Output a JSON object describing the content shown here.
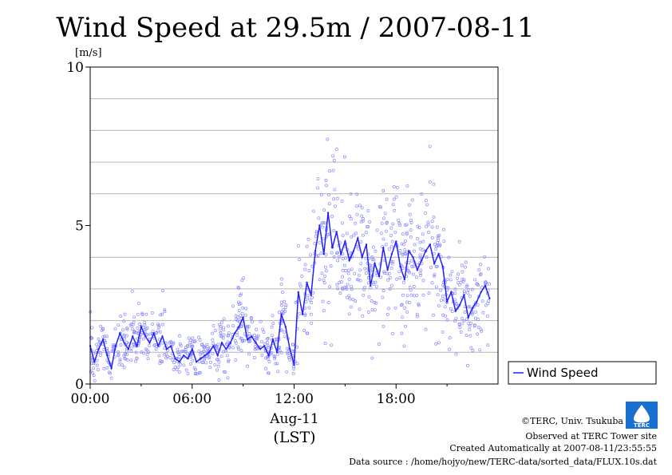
{
  "title": "Wind Speed at 29.5m / 2007-08-11",
  "chart_data": {
    "type": "line",
    "title": "Wind Speed at 29.5m / 2007-08-11",
    "ylabel": "[m/s]",
    "xlabel_date": "Aug-11",
    "xlabel_tz": "(LST)",
    "ylim": [
      0,
      10
    ],
    "xlim_hours": [
      0,
      24
    ],
    "yticks": [
      {
        "v": 0,
        "label": "0"
      },
      {
        "v": 5,
        "label": "5"
      },
      {
        "v": 10,
        "label": "10"
      }
    ],
    "ygrid": [
      1,
      2,
      3,
      4,
      6,
      7,
      8,
      9
    ],
    "xticks": [
      {
        "v": 0,
        "label": "00:00"
      },
      {
        "v": 6,
        "label": "06:00"
      },
      {
        "v": 12,
        "label": "12:00"
      },
      {
        "v": 18,
        "label": "18:00"
      }
    ],
    "grid": true,
    "legend_position": "right",
    "series": [
      {
        "name": "Wind Speed",
        "color": "#2020ff",
        "x_hours": [
          0,
          0.25,
          0.5,
          0.75,
          1,
          1.25,
          1.5,
          1.75,
          2,
          2.25,
          2.5,
          2.75,
          3,
          3.25,
          3.5,
          3.75,
          4,
          4.25,
          4.5,
          4.75,
          5,
          5.25,
          5.5,
          5.75,
          6,
          6.25,
          6.5,
          6.75,
          7,
          7.25,
          7.5,
          7.75,
          8,
          8.25,
          8.5,
          8.75,
          9,
          9.25,
          9.5,
          9.75,
          10,
          10.25,
          10.5,
          10.75,
          11,
          11.25,
          11.5,
          11.75,
          12,
          12.25,
          12.5,
          12.75,
          13,
          13.25,
          13.5,
          13.75,
          14,
          14.25,
          14.5,
          14.75,
          15,
          15.25,
          15.5,
          15.75,
          16,
          16.25,
          16.5,
          16.75,
          17,
          17.25,
          17.5,
          17.75,
          18,
          18.25,
          18.5,
          18.75,
          19,
          19.25,
          19.5,
          19.75,
          20,
          20.25,
          20.5,
          20.75,
          21,
          21.25,
          21.5,
          21.75,
          22,
          22.25,
          22.5,
          22.75,
          23,
          23.25,
          23.5
        ],
        "values": [
          1.2,
          0.7,
          1.1,
          1.4,
          0.9,
          0.5,
          1.2,
          1.6,
          1.3,
          1.1,
          1.5,
          1.2,
          1.8,
          1.5,
          1.3,
          1.6,
          1.2,
          1.5,
          1.1,
          1.2,
          0.8,
          0.7,
          0.9,
          0.8,
          1.1,
          0.7,
          0.8,
          0.9,
          1.0,
          1.2,
          0.9,
          1.3,
          1.1,
          1.3,
          1.6,
          1.8,
          2.1,
          1.4,
          1.5,
          1.3,
          1.1,
          1.2,
          0.9,
          1.4,
          1.0,
          2.2,
          1.8,
          1.1,
          0.6,
          2.9,
          2.2,
          3.2,
          2.8,
          4.2,
          5.0,
          4.1,
          5.4,
          4.3,
          4.8,
          4.1,
          4.5,
          3.9,
          4.2,
          4.6,
          4.0,
          4.4,
          3.1,
          3.8,
          3.4,
          4.3,
          3.6,
          4.1,
          4.5,
          3.7,
          3.3,
          4.2,
          4.0,
          3.6,
          3.9,
          4.2,
          4.4,
          3.8,
          4.1,
          3.7,
          2.6,
          2.9,
          2.3,
          2.5,
          2.8,
          2.1,
          2.4,
          2.6,
          2.9,
          3.1,
          2.7
        ]
      }
    ]
  },
  "footer": {
    "copyright": "©TERC, Univ. Tsukuba",
    "observed": "Observed at TERC Tower site",
    "created": "Created Automatically at 2007-08-11/23:55:55",
    "source": "Data source : /home/hojyo/new/TERC-data/sorted_data/FLUX.10s.dat",
    "logo_text": "TERC"
  }
}
